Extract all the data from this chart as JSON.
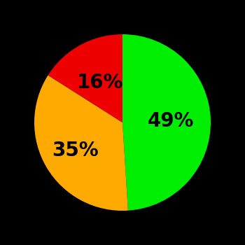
{
  "slices": [
    49,
    35,
    16
  ],
  "colors": [
    "#00ee00",
    "#ffaa00",
    "#ee0000"
  ],
  "labels": [
    "49%",
    "35%",
    "16%"
  ],
  "background_color": "#000000",
  "startangle": 90,
  "label_fontsize": 20,
  "label_fontweight": "bold",
  "label_color": "#000000",
  "label_radii": [
    0.55,
    0.62,
    0.52
  ]
}
